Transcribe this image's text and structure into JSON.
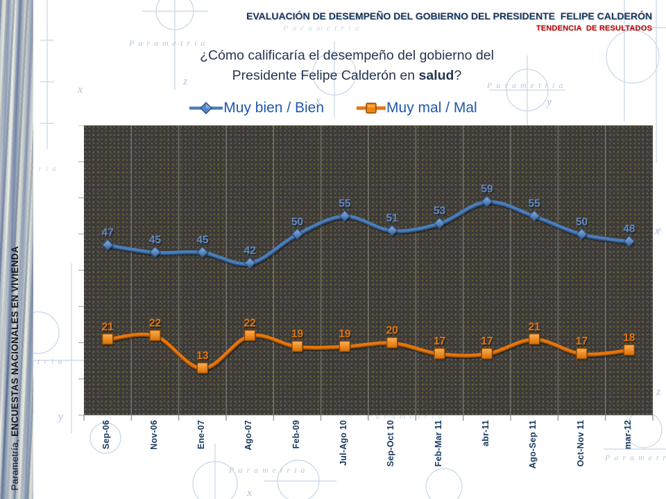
{
  "header": {
    "title": "EVALUACIÓN DE DESEMPEÑO DEL GOBIERNO DEL PRESIDENTE  FELIPE CALDERÓN",
    "subtitle": "TENDENCIA  DE RESULTADOS",
    "title_color": "#17375e",
    "subtitle_color": "#c00000"
  },
  "question": {
    "line1": "¿Cómo calificaría el desempeño del gobierno del",
    "line2_prefix": "Presidente Felipe Calderón en ",
    "line2_bold": "salud",
    "line2_suffix": "?"
  },
  "legend": [
    {
      "label": "Muy bien / Bien",
      "marker": "diamond",
      "color": "#4a7ebb"
    },
    {
      "label": "Muy mal / Mal",
      "marker": "square",
      "color": "#e8750a"
    }
  ],
  "sidebar": {
    "text_regular": "Parametría, ",
    "text_bold": "ENCUESTAS NACIONALES EN VIVIENDA"
  },
  "background": {
    "watermark": "Parametria"
  },
  "chart_data": {
    "type": "line",
    "categories": [
      "Sep-06",
      "Nov-06",
      "Ene-07",
      "Ago-07",
      "Feb-09",
      "Jul-Ago 10",
      "Sep-Oct 10",
      "Feb-Mar 11",
      "abr-11",
      "Ago-Sep 11",
      "Oct-Nov 11",
      "mar-12"
    ],
    "series": [
      {
        "name": "Muy bien / Bien",
        "values": [
          47,
          45,
          45,
          42,
          50,
          55,
          51,
          53,
          59,
          55,
          50,
          48
        ],
        "color": "#4a7ebb",
        "edge": "#2d5586",
        "label_color": "#6089c5",
        "marker": "diamond"
      },
      {
        "name": "Muy mal / Mal",
        "values": [
          21,
          22,
          13,
          22,
          19,
          19,
          20,
          17,
          17,
          21,
          17,
          18
        ],
        "color": "#e8750a",
        "edge": "#9e5407",
        "label_color": "#e2750e",
        "marker": "square"
      }
    ],
    "ylim": [
      0,
      80
    ],
    "grid": "vertical-only",
    "legend_position": "top",
    "plot_bg": "#3d3b37",
    "title": "¿Cómo calificaría el desempeño del gobierno del Presidente Felipe Calderón en salud?",
    "xlabel": "",
    "ylabel": ""
  }
}
